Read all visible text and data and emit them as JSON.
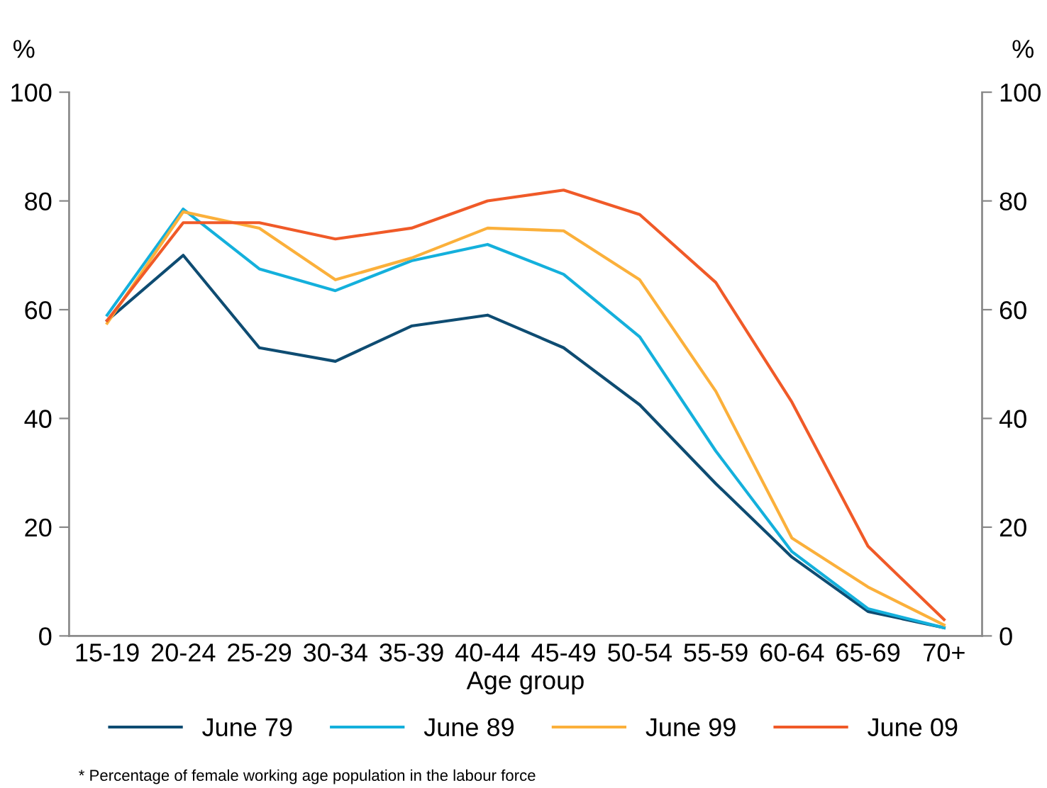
{
  "chart_data": {
    "type": "line",
    "ylabel": "%",
    "y2label": "%",
    "xlabel": "Age group",
    "categories": [
      "15-19",
      "20-24",
      "25-29",
      "30-34",
      "35-39",
      "40-44",
      "45-49",
      "50-54",
      "55-59",
      "60-64",
      "65-69",
      "70+"
    ],
    "series": [
      {
        "name": "June 79",
        "color": "#0e4c72",
        "values": [
          58,
          70,
          53,
          50.5,
          57,
          59,
          53,
          42.5,
          28,
          14.5,
          4.5,
          1.5
        ]
      },
      {
        "name": "June 89",
        "color": "#14b0dc",
        "values": [
          59,
          78.5,
          67.5,
          63.5,
          69,
          72,
          66.5,
          55,
          34,
          15.5,
          5,
          1.5
        ]
      },
      {
        "name": "June 99",
        "color": "#fbb03b",
        "values": [
          57.5,
          78,
          75,
          65.5,
          69.5,
          75,
          74.5,
          65.5,
          45,
          18,
          9,
          2
        ]
      },
      {
        "name": "June 09",
        "color": "#f05a28",
        "values": [
          58,
          76,
          76,
          73,
          75,
          80,
          82,
          77.5,
          65,
          43,
          16.5,
          3
        ]
      }
    ],
    "ylim": [
      0,
      100
    ],
    "yticks": [
      0,
      20,
      40,
      60,
      80,
      100
    ],
    "y2lim": [
      0,
      100
    ],
    "y2ticks": [
      0,
      20,
      40,
      60,
      80,
      100
    ],
    "grid": false,
    "legend": "bottom",
    "marker": "none",
    "line_style": "solid",
    "annotations": [
      "* Percentage of female working age population in the labour force"
    ]
  }
}
